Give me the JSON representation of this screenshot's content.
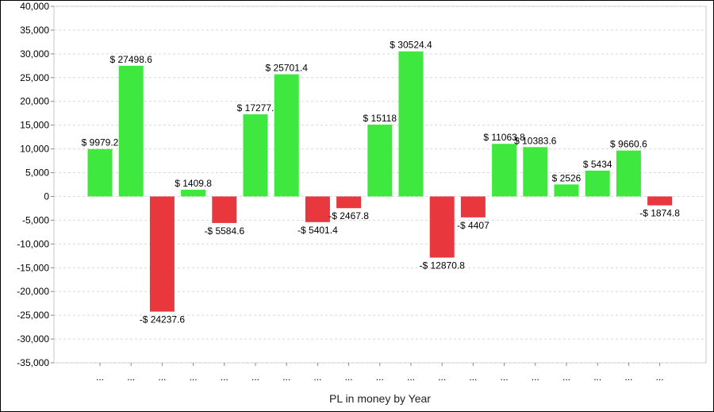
{
  "chart_data": {
    "type": "bar",
    "title": "",
    "xlabel": "PL in money by Year",
    "ylabel": "",
    "ylim": [
      -35000,
      40000
    ],
    "yticks": [
      40000,
      35000,
      30000,
      25000,
      20000,
      15000,
      10000,
      5000,
      0,
      -5000,
      -10000,
      -15000,
      -20000,
      -25000,
      -30000,
      -35000
    ],
    "ytick_labels": [
      "40,000",
      "35,000",
      "30,000",
      "25,000",
      "20,000",
      "15,000",
      "10,000",
      "5,000",
      "0",
      "-5,000",
      "-10,000",
      "-15,000",
      "-20,000",
      "-25,000",
      "-30,000",
      "-35,000"
    ],
    "grid": true,
    "legend": "none",
    "positive_color": "#3ee83e",
    "negative_color": "#e8383e",
    "categories": [
      "...",
      "...",
      "...",
      "...",
      "...",
      "...",
      "...",
      "...",
      "...",
      "...",
      "...",
      "...",
      "...",
      "...",
      "...",
      "...",
      "...",
      "...",
      "..."
    ],
    "values": [
      9979.2,
      27498.6,
      -24237.6,
      1409.8,
      -5584.6,
      17277.0,
      25701.4,
      -5401.4,
      -2467.8,
      15118.0,
      30524.4,
      -12870.8,
      -4407.0,
      11063.8,
      10383.6,
      2526.0,
      5434.0,
      9660.6,
      -1874.8
    ],
    "data_labels": [
      "$ 9979.2",
      "$ 27498.6",
      "-$ 24237.6",
      "$ 1409.8",
      "-$ 5584.6",
      "$ 17277.",
      "$ 25701.4",
      "-$ 5401.4",
      "-$ 2467.8",
      "$ 15118",
      "$ 30524.4",
      "-$ 12870.8",
      "-$ 4407",
      "$ 11063.8",
      "$ 10383.6",
      "$ 2526",
      "$ 5434",
      "$ 9660.6",
      "-$ 1874.8"
    ]
  }
}
